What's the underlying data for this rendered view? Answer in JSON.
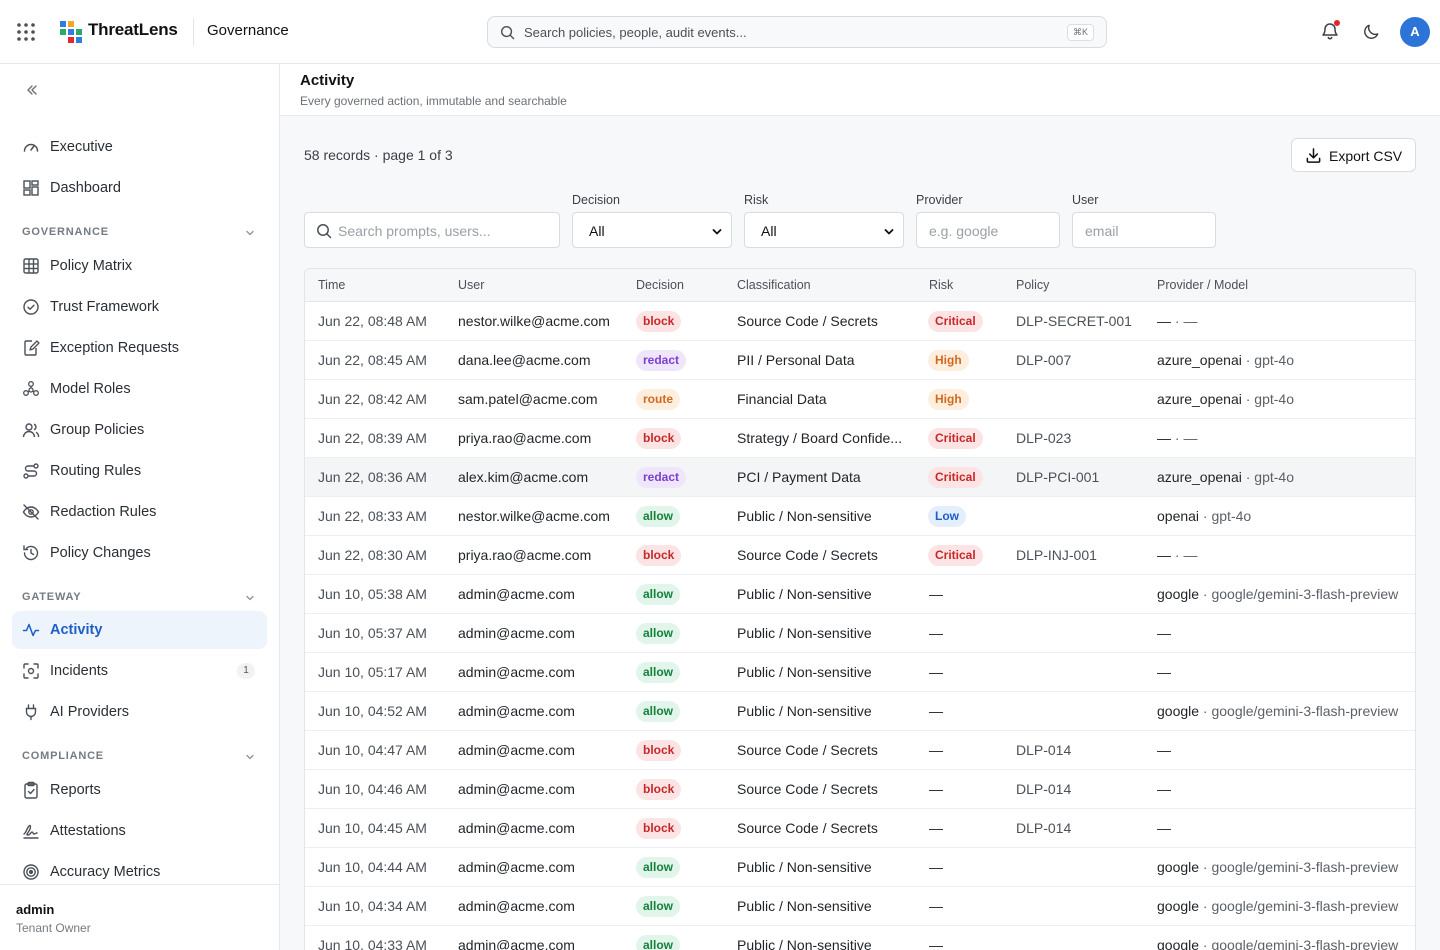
{
  "app": {
    "brand": "ThreatLens",
    "section": "Governance",
    "search_placeholder": "Search policies, people, audit events...",
    "search_shortcut": "⌘K",
    "avatar_initial": "A"
  },
  "sidebar": {
    "top_items": [
      {
        "label": "Executive",
        "icon": "gauge-icon"
      },
      {
        "label": "Dashboard",
        "icon": "dashboard-icon"
      }
    ],
    "groups": [
      {
        "title": "GOVERNANCE",
        "items": [
          {
            "label": "Policy Matrix",
            "icon": "grid-icon"
          },
          {
            "label": "Trust Framework",
            "icon": "check-circle-icon"
          },
          {
            "label": "Exception Requests",
            "icon": "edit-doc-icon"
          },
          {
            "label": "Model Roles",
            "icon": "nodes-icon"
          },
          {
            "label": "Group Policies",
            "icon": "users-icon"
          },
          {
            "label": "Routing Rules",
            "icon": "route-icon"
          },
          {
            "label": "Redaction Rules",
            "icon": "eye-off-icon"
          },
          {
            "label": "Policy Changes",
            "icon": "history-icon"
          }
        ]
      },
      {
        "title": "GATEWAY",
        "items": [
          {
            "label": "Activity",
            "icon": "activity-icon",
            "active": true
          },
          {
            "label": "Incidents",
            "icon": "scan-icon",
            "badge": "1"
          },
          {
            "label": "AI Providers",
            "icon": "plug-icon"
          }
        ]
      },
      {
        "title": "COMPLIANCE",
        "items": [
          {
            "label": "Reports",
            "icon": "clipboard-icon"
          },
          {
            "label": "Attestations",
            "icon": "signature-icon"
          },
          {
            "label": "Accuracy Metrics",
            "icon": "target-icon"
          }
        ]
      }
    ],
    "user": {
      "name": "admin",
      "role": "Tenant Owner"
    }
  },
  "page": {
    "title": "Activity",
    "subtitle": "Every governed action, immutable and searchable",
    "records_summary": "58 records · page 1 of 3",
    "export_label": "Export CSV"
  },
  "filters": {
    "search_placeholder": "Search prompts, users...",
    "decision": {
      "label": "Decision",
      "value": "All"
    },
    "risk": {
      "label": "Risk",
      "value": "All"
    },
    "provider": {
      "label": "Provider",
      "placeholder": "e.g. google"
    },
    "user": {
      "label": "User",
      "placeholder": "email"
    }
  },
  "table": {
    "columns": [
      "Time",
      "User",
      "Decision",
      "Classification",
      "Risk",
      "Policy",
      "Provider / Model"
    ],
    "rows": [
      {
        "time": "Jun 22, 08:48 AM",
        "user": "nestor.wilke@acme.com",
        "decision": "block",
        "classification": "Source Code / Secrets",
        "risk": "Critical",
        "policy": "DLP-SECRET-001",
        "provider": "—",
        "model": "· —"
      },
      {
        "time": "Jun 22, 08:45 AM",
        "user": "dana.lee@acme.com",
        "decision": "redact",
        "classification": "PII / Personal Data",
        "risk": "High",
        "policy": "DLP-007",
        "provider": "azure_openai",
        "model": "· gpt-4o"
      },
      {
        "time": "Jun 22, 08:42 AM",
        "user": "sam.patel@acme.com",
        "decision": "route",
        "classification": "Financial Data",
        "risk": "High",
        "policy": "",
        "provider": "azure_openai",
        "model": "· gpt-4o"
      },
      {
        "time": "Jun 22, 08:39 AM",
        "user": "priya.rao@acme.com",
        "decision": "block",
        "classification": "Strategy / Board Confide...",
        "risk": "Critical",
        "policy": "DLP-023",
        "provider": "—",
        "model": "· —"
      },
      {
        "time": "Jun 22, 08:36 AM",
        "user": "alex.kim@acme.com",
        "decision": "redact",
        "classification": "PCI / Payment Data",
        "risk": "Critical",
        "policy": "DLP-PCI-001",
        "provider": "azure_openai",
        "model": "· gpt-4o",
        "highlight": true
      },
      {
        "time": "Jun 22, 08:33 AM",
        "user": "nestor.wilke@acme.com",
        "decision": "allow",
        "classification": "Public / Non-sensitive",
        "risk": "Low",
        "policy": "",
        "provider": "openai",
        "model": "· gpt-4o"
      },
      {
        "time": "Jun 22, 08:30 AM",
        "user": "priya.rao@acme.com",
        "decision": "block",
        "classification": "Source Code / Secrets",
        "risk": "Critical",
        "policy": "DLP-INJ-001",
        "provider": "—",
        "model": "· —"
      },
      {
        "time": "Jun 10, 05:38 AM",
        "user": "admin@acme.com",
        "decision": "allow",
        "classification": "Public / Non-sensitive",
        "risk": "—",
        "policy": "",
        "provider": "google",
        "model": "· google/gemini-3-flash-preview"
      },
      {
        "time": "Jun 10, 05:37 AM",
        "user": "admin@acme.com",
        "decision": "allow",
        "classification": "Public / Non-sensitive",
        "risk": "—",
        "policy": "",
        "provider": "—",
        "model": ""
      },
      {
        "time": "Jun 10, 05:17 AM",
        "user": "admin@acme.com",
        "decision": "allow",
        "classification": "Public / Non-sensitive",
        "risk": "—",
        "policy": "",
        "provider": "—",
        "model": ""
      },
      {
        "time": "Jun 10, 04:52 AM",
        "user": "admin@acme.com",
        "decision": "allow",
        "classification": "Public / Non-sensitive",
        "risk": "—",
        "policy": "",
        "provider": "google",
        "model": "· google/gemini-3-flash-preview"
      },
      {
        "time": "Jun 10, 04:47 AM",
        "user": "admin@acme.com",
        "decision": "block",
        "classification": "Source Code / Secrets",
        "risk": "—",
        "policy": "DLP-014",
        "provider": "—",
        "model": ""
      },
      {
        "time": "Jun 10, 04:46 AM",
        "user": "admin@acme.com",
        "decision": "block",
        "classification": "Source Code / Secrets",
        "risk": "—",
        "policy": "DLP-014",
        "provider": "—",
        "model": ""
      },
      {
        "time": "Jun 10, 04:45 AM",
        "user": "admin@acme.com",
        "decision": "block",
        "classification": "Source Code / Secrets",
        "risk": "—",
        "policy": "DLP-014",
        "provider": "—",
        "model": ""
      },
      {
        "time": "Jun 10, 04:44 AM",
        "user": "admin@acme.com",
        "decision": "allow",
        "classification": "Public / Non-sensitive",
        "risk": "—",
        "policy": "",
        "provider": "google",
        "model": "· google/gemini-3-flash-preview"
      },
      {
        "time": "Jun 10, 04:34 AM",
        "user": "admin@acme.com",
        "decision": "allow",
        "classification": "Public / Non-sensitive",
        "risk": "—",
        "policy": "",
        "provider": "google",
        "model": "· google/gemini-3-flash-preview"
      },
      {
        "time": "Jun 10, 04:33 AM",
        "user": "admin@acme.com",
        "decision": "allow",
        "classification": "Public / Non-sensitive",
        "risk": "—",
        "policy": "",
        "provider": "google",
        "model": "· google/gemini-3-flash-preview"
      }
    ]
  },
  "colors": {
    "accent": "#1e5fc9",
    "block_bg": "#fde4e4",
    "block_fg": "#c62828",
    "redact_bg": "#efe6fb",
    "redact_fg": "#7b3fd0",
    "route_bg": "#fdeede",
    "route_fg": "#d2691e",
    "allow_bg": "#e1f5ea",
    "allow_fg": "#16803d",
    "critical_bg": "#fde4e4",
    "critical_fg": "#c62828",
    "high_bg": "#fdeede",
    "high_fg": "#d2691e",
    "low_bg": "#e4eefc",
    "low_fg": "#1e5fc9"
  }
}
